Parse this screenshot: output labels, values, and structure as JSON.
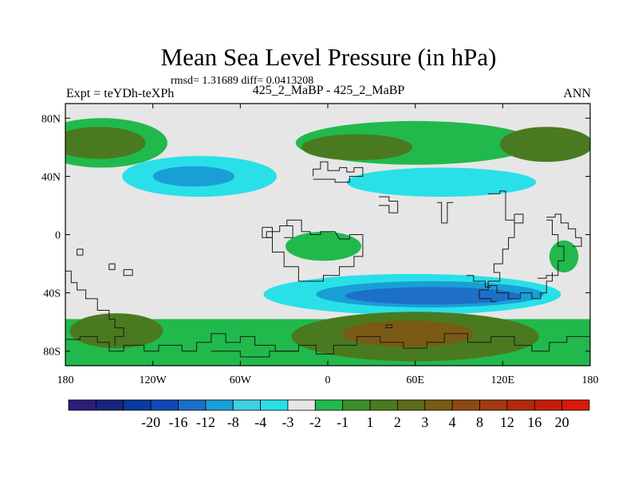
{
  "chart_data": {
    "type": "heatmap",
    "title": "Mean Sea Level Pressure (in hPa)",
    "stats_text": "rmsd= 1.31689 diff= 0.0413208",
    "left_label": "Expt = teYDh-teXPh",
    "subtitle": "425_2_MaBP - 425_2_MaBP",
    "season": "ANN",
    "xlim": [
      -180,
      180
    ],
    "ylim": [
      -90,
      90
    ],
    "x_ticks": [
      {
        "value": -180,
        "label": "180"
      },
      {
        "value": -120,
        "label": "120W"
      },
      {
        "value": -60,
        "label": "60W"
      },
      {
        "value": 0,
        "label": "0"
      },
      {
        "value": 60,
        "label": "60E"
      },
      {
        "value": 120,
        "label": "120E"
      },
      {
        "value": 180,
        "label": "180"
      }
    ],
    "y_ticks": [
      {
        "value": 80,
        "label": "80N"
      },
      {
        "value": 40,
        "label": "40N"
      },
      {
        "value": 0,
        "label": "0"
      },
      {
        "value": -40,
        "label": "40S"
      },
      {
        "value": -80,
        "label": "80S"
      }
    ],
    "colorbar": {
      "colors": [
        "#2a1f7a",
        "#19237d",
        "#0b3a9c",
        "#1248b5",
        "#1d6fc8",
        "#1a9ed6",
        "#3fd0e4",
        "#29e0e8",
        "#e6e6e6",
        "#21b94c",
        "#3f8d2a",
        "#4a7a1f",
        "#5b6c1a",
        "#7a5a14",
        "#8c4a12",
        "#a23a10",
        "#b32a0e",
        "#c41e0b",
        "#d81a07"
      ],
      "boundary_labels": [
        "-20",
        "-16",
        "-12",
        "-8",
        "-4",
        "-3",
        "-2",
        "-1",
        "1",
        "2",
        "3",
        "4",
        "8",
        "12",
        "16",
        "20"
      ]
    },
    "regions": [
      {
        "level": "2",
        "color": "#21b94c",
        "shape": "ellipse",
        "cx": -155,
        "cy": 63,
        "rx": 45,
        "ry": 17
      },
      {
        "level": "3",
        "color": "#4a7a1f",
        "shape": "ellipse",
        "cx": -157,
        "cy": 63,
        "rx": 32,
        "ry": 11
      },
      {
        "level": "2",
        "color": "#21b94c",
        "shape": "ellipse",
        "cx": 60,
        "cy": 63,
        "rx": 82,
        "ry": 15
      },
      {
        "level": "3",
        "color": "#4a7a1f",
        "shape": "ellipse",
        "cx": 20,
        "cy": 60,
        "rx": 38,
        "ry": 9
      },
      {
        "level": "3",
        "color": "#4a7a1f",
        "shape": "ellipse",
        "cx": 150,
        "cy": 62,
        "rx": 32,
        "ry": 12
      },
      {
        "level": "-2",
        "color": "#29e0e8",
        "shape": "ellipse",
        "cx": -88,
        "cy": 40,
        "rx": 53,
        "ry": 14
      },
      {
        "level": "-3",
        "color": "#1a9ed6",
        "shape": "ellipse",
        "cx": -92,
        "cy": 40,
        "rx": 28,
        "ry": 7
      },
      {
        "level": "-2",
        "color": "#29e0e8",
        "shape": "ellipse",
        "cx": 78,
        "cy": 36,
        "rx": 65,
        "ry": 10
      },
      {
        "level": "2",
        "color": "#21b94c",
        "shape": "ellipse",
        "cx": -3,
        "cy": -8,
        "rx": 26,
        "ry": 10
      },
      {
        "level": "2",
        "color": "#21b94c",
        "shape": "ellipse",
        "cx": 162,
        "cy": -15,
        "rx": 10,
        "ry": 11
      },
      {
        "level": "-2",
        "color": "#29e0e8",
        "shape": "ellipse",
        "cx": 58,
        "cy": -41,
        "rx": 102,
        "ry": 14
      },
      {
        "level": "-3",
        "color": "#1a9ed6",
        "shape": "ellipse",
        "cx": 70,
        "cy": -41,
        "rx": 78,
        "ry": 9
      },
      {
        "level": "-4",
        "color": "#1d6fc8",
        "shape": "ellipse",
        "cx": 72,
        "cy": -42,
        "rx": 60,
        "ry": 6
      },
      {
        "level": "2",
        "color": "#21b94c",
        "shape": "rect",
        "x0": -180,
        "y0": -90,
        "x1": 180,
        "y1": -58
      },
      {
        "level": "3",
        "color": "#4a7a1f",
        "shape": "ellipse",
        "cx": -145,
        "cy": -66,
        "rx": 32,
        "ry": 12
      },
      {
        "level": "3",
        "color": "#4a7a1f",
        "shape": "ellipse",
        "cx": 60,
        "cy": -70,
        "rx": 85,
        "ry": 17
      },
      {
        "level": "4",
        "color": "#7a5a14",
        "shape": "ellipse",
        "cx": 55,
        "cy": -68,
        "rx": 45,
        "ry": 9
      }
    ]
  }
}
